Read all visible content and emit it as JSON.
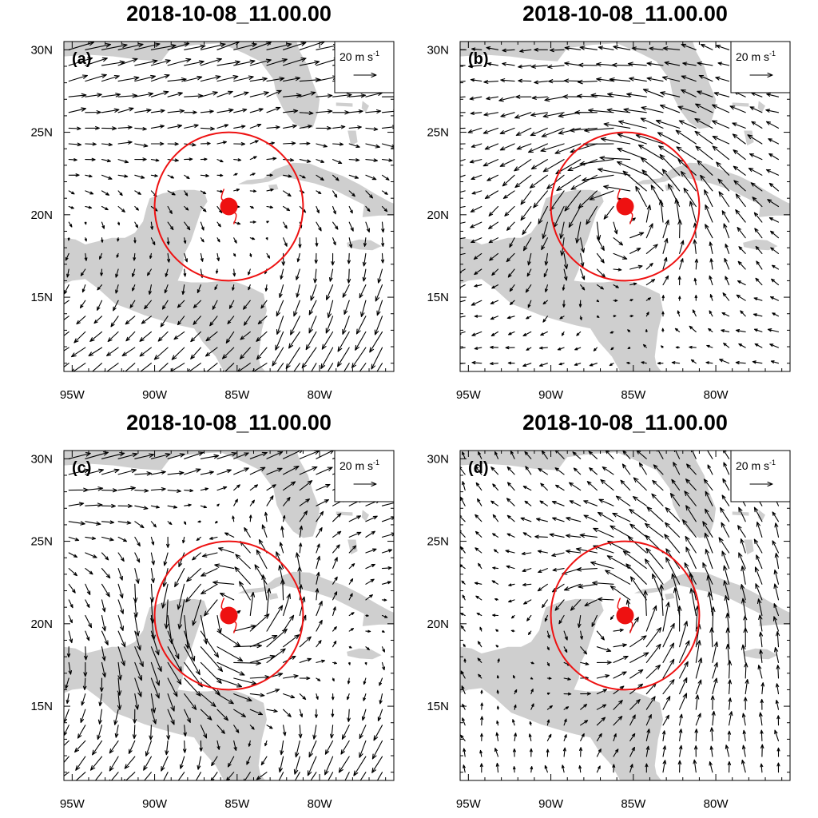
{
  "figure": {
    "lon_range": [
      -95.5,
      -75.5
    ],
    "lat_range": [
      10.5,
      30.5
    ],
    "lon_ticks": [
      {
        "value": -95,
        "label": "95W"
      },
      {
        "value": -90,
        "label": "90W"
      },
      {
        "value": -85,
        "label": "85W"
      },
      {
        "value": -80,
        "label": "80W"
      }
    ],
    "lat_ticks": [
      {
        "value": 15,
        "label": "15N"
      },
      {
        "value": 20,
        "label": "20N"
      },
      {
        "value": 25,
        "label": "25N"
      },
      {
        "value": 30,
        "label": "30N"
      }
    ],
    "land_color": "#cfcfcf",
    "storm_color": "#ee1111",
    "storm_center": {
      "lon": -85.5,
      "lat": 20.5
    },
    "ring_radius_deg": 4.5,
    "reference_vector": {
      "speed_value": "20 m s",
      "speed_exponent": "-1",
      "magnitude": 20
    }
  },
  "panels": [
    {
      "id": "a",
      "title": "2018-10-08_11.00.00",
      "letter": "(a)",
      "flow": "sheared",
      "ring_strength": 0.15
    },
    {
      "id": "b",
      "title": "2018-10-08_11.00.00",
      "letter": "(b)",
      "flow": "vortex",
      "ring_strength": 1.0
    },
    {
      "id": "c",
      "title": "2018-10-08_11.00.00",
      "letter": "(c)",
      "flow": "sheared",
      "ring_strength": 1.3
    },
    {
      "id": "d",
      "title": "2018-10-08_11.00.00",
      "letter": "(d)",
      "flow": "weak",
      "ring_strength": 0.9
    }
  ]
}
